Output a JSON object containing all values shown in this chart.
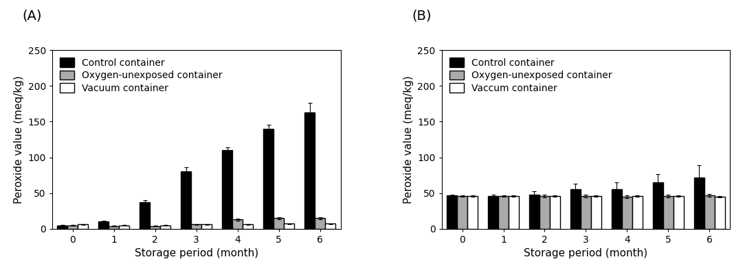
{
  "A": {
    "label": "(A)",
    "months": [
      0,
      1,
      2,
      3,
      4,
      5,
      6
    ],
    "control": [
      5,
      10,
      37,
      80,
      110,
      140,
      163
    ],
    "control_err": [
      0.5,
      1.0,
      3.0,
      6.0,
      4.0,
      6.0,
      13.0
    ],
    "oxygen": [
      5,
      4,
      4,
      6,
      13,
      15,
      15
    ],
    "oxygen_err": [
      0.5,
      0.5,
      0.5,
      0.5,
      1.5,
      1.5,
      1.5
    ],
    "vacuum": [
      6,
      5,
      5,
      6,
      6,
      7,
      7
    ],
    "vacuum_err": [
      0.5,
      0.5,
      0.5,
      0.5,
      0.5,
      0.5,
      0.5
    ]
  },
  "B": {
    "label": "(B)",
    "months": [
      0,
      1,
      2,
      3,
      4,
      5,
      6
    ],
    "control": [
      47,
      46,
      48,
      55,
      55,
      65,
      72
    ],
    "control_err": [
      1.0,
      2.0,
      5.0,
      8.0,
      10.0,
      12.0,
      17.0
    ],
    "oxygen": [
      46,
      46,
      46,
      46,
      45,
      46,
      47
    ],
    "oxygen_err": [
      1.0,
      1.0,
      2.0,
      2.0,
      2.0,
      2.0,
      2.0
    ],
    "vacuum": [
      46,
      46,
      46,
      46,
      46,
      46,
      45
    ],
    "vacuum_err": [
      1.0,
      1.0,
      1.0,
      1.0,
      1.0,
      1.0,
      1.0
    ]
  },
  "legend_A": [
    "Control container",
    "Oxygen-unexposed container",
    "Vacuum container"
  ],
  "legend_B": [
    "Control container",
    "Oxygen-unexposed container",
    "Vaccum container"
  ],
  "ylabel": "Peroxide value (meq/kg)",
  "xlabel": "Storage period (month)",
  "ylim": [
    0,
    250
  ],
  "yticks": [
    0,
    50,
    100,
    150,
    200,
    250
  ],
  "bar_colors": [
    "#000000",
    "#aaaaaa",
    "#ffffff"
  ],
  "bar_edgecolor": "#000000",
  "bar_width": 0.25,
  "figsize": [
    10.84,
    4.07
  ],
  "dpi": 100,
  "label_fontsize": 14,
  "tick_fontsize": 10,
  "axis_fontsize": 11,
  "legend_fontsize": 10
}
